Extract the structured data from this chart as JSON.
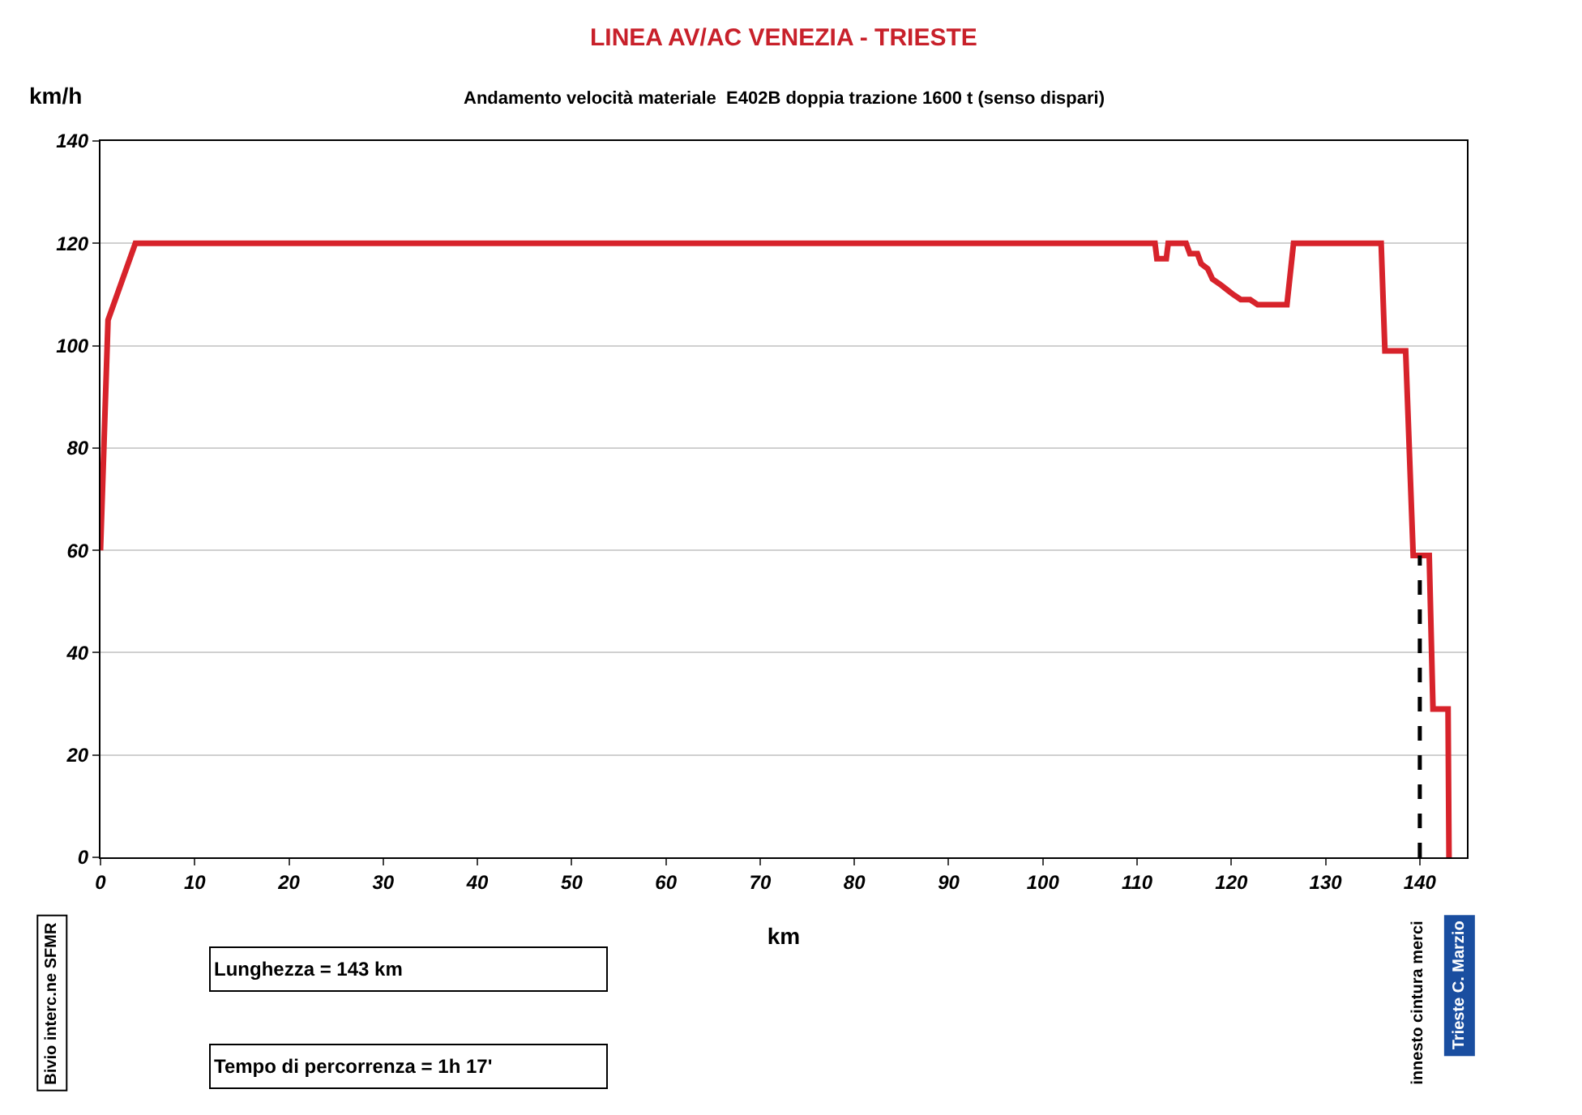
{
  "chart_data": {
    "type": "line",
    "title": "LINEA AV/AC VENEZIA - TRIESTE",
    "subtitle": "Andamento velocità materiale  E402B doppia trazione 1600 t (senso dispari)",
    "xlabel": "km",
    "ylabel": "km/h",
    "series": [
      {
        "color": "#d7232b",
        "x": [
          0,
          0.8,
          3.7,
          111.9,
          112.1,
          113.1,
          113.3,
          115.2,
          115.6,
          116.4,
          116.8,
          117.5,
          118,
          118.8,
          119.5,
          120.2,
          121,
          122,
          122.8,
          125.9,
          126.6,
          135.9,
          136.3,
          138.5,
          139.3,
          141,
          141.4,
          143,
          143.1
        ],
        "values": [
          60,
          105,
          120,
          120,
          117,
          117,
          120,
          120,
          118,
          118,
          116,
          115,
          113,
          112,
          111,
          110,
          109,
          109,
          108,
          108,
          120,
          120,
          99,
          99,
          59,
          59,
          29,
          29,
          0
        ]
      },
      {
        "color": "#000000",
        "line_style": "dashed",
        "x": [
          140,
          140
        ],
        "values": [
          0,
          59
        ]
      }
    ],
    "xlim": [
      0,
      145
    ],
    "xticks": [
      0,
      10,
      20,
      30,
      40,
      50,
      60,
      70,
      80,
      90,
      100,
      110,
      120,
      130,
      140
    ],
    "ylim": [
      0,
      140
    ],
    "yticks": [
      0,
      20,
      40,
      60,
      80,
      100,
      120,
      140
    ],
    "grid": "y",
    "marker": "none",
    "line_style": "solid",
    "annotations": [
      "Bivio interc.ne SFMR",
      "Lunghezza = 143 km",
      "Tempo di percorrenza = 1h 17'",
      "innesto cintura merci",
      "Trieste C. Marzio"
    ]
  }
}
